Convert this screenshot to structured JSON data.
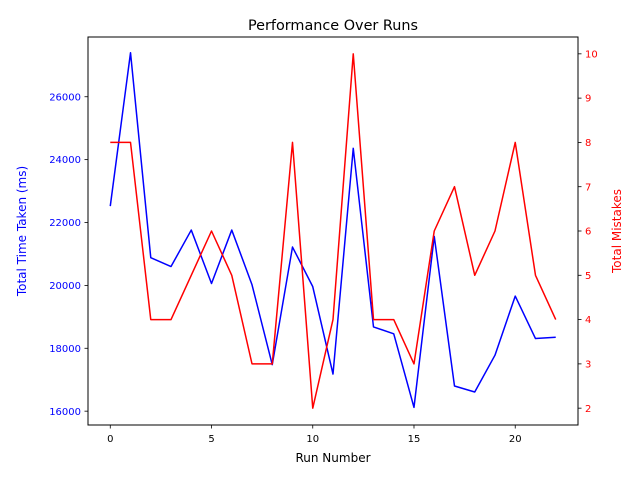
{
  "chart_data": {
    "type": "line",
    "title": "Performance Over Runs",
    "xlabel": "Run Number",
    "ylabel_left": "Total Time Taken (ms)",
    "ylabel_right": "Total Mistakes",
    "x": [
      0,
      1,
      2,
      3,
      4,
      5,
      6,
      7,
      8,
      9,
      10,
      11,
      12,
      13,
      14,
      15,
      16,
      17,
      18,
      19,
      20,
      21,
      22
    ],
    "x_ticks": [
      0,
      5,
      10,
      15,
      20
    ],
    "y_left_ticks": [
      16000,
      18000,
      20000,
      22000,
      24000,
      26000
    ],
    "y_right_ticks": [
      2,
      3,
      4,
      5,
      6,
      7,
      8,
      9,
      10
    ],
    "xlim": [
      -1.1,
      23.1
    ],
    "ylim_left": [
      15560,
      27900
    ],
    "ylim_right": [
      1.62,
      10.38
    ],
    "grid": false,
    "legend": "none",
    "series": [
      {
        "axis": "left",
        "color": "#0000ff",
        "values": [
          22520,
          27400,
          20880,
          20600,
          21760,
          20060,
          21760,
          20020,
          17480,
          21220,
          19960,
          17180,
          24360,
          18680,
          18460,
          16120,
          21560,
          16800,
          16610,
          17780,
          19660,
          18310,
          18350
        ]
      },
      {
        "axis": "right",
        "color": "#ff0000",
        "values": [
          8,
          8,
          4,
          4,
          5,
          6,
          5,
          3,
          3,
          8,
          2,
          4,
          10,
          4,
          4,
          3,
          6,
          7,
          5,
          6,
          8,
          5,
          4
        ]
      }
    ]
  }
}
